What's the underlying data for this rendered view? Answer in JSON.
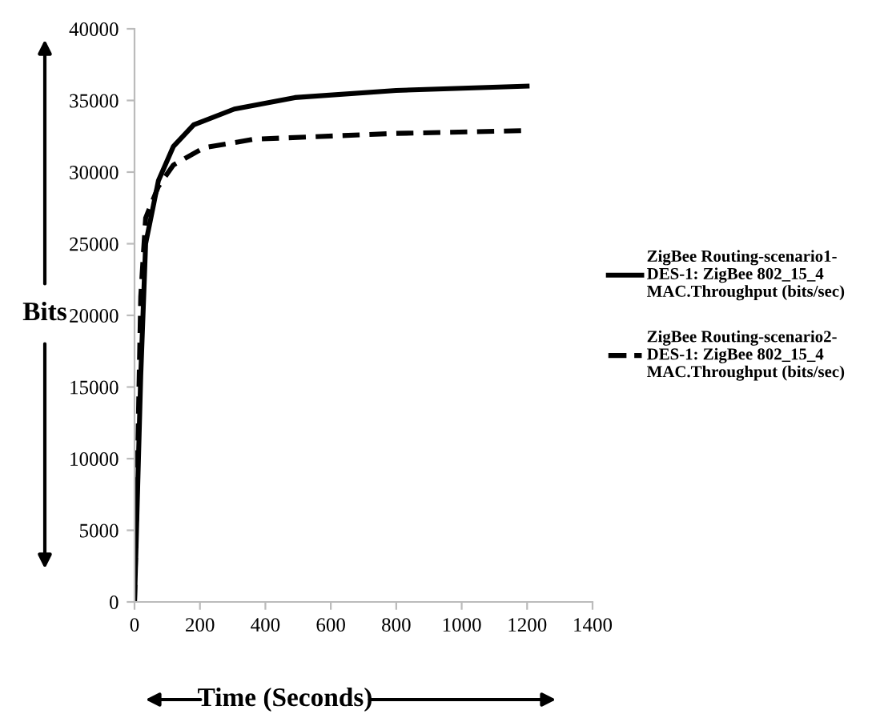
{
  "chart_data": {
    "type": "line",
    "xlabel": "Time (Seconds)",
    "ylabel": "Bits",
    "xlim": [
      0,
      1400
    ],
    "xticks": [
      0,
      200,
      400,
      600,
      800,
      1000,
      1200,
      1400
    ],
    "ylim": [
      0,
      40000
    ],
    "yticks": [
      0,
      5000,
      10000,
      15000,
      20000,
      25000,
      30000,
      35000,
      40000
    ],
    "grid": false,
    "legend": "right",
    "marker": "none",
    "series": [
      {
        "name": "ZigBee Routing-scenario1-DES-1: ZigBee 802_15_4 MAC.Throughput (bits/sec)",
        "color": "#000000",
        "line_style": "solid",
        "x": [
          0,
          19,
          34,
          73,
          119,
          181,
          305,
          490,
          800,
          1200
        ],
        "values": [
          0,
          15800,
          25000,
          29400,
          31800,
          33300,
          34400,
          35200,
          35700,
          36000
        ]
      },
      {
        "name": "ZigBee Routing-scenario2-DES-1: ZigBee 802_15_4 MAC.Throughput (bits/sec)",
        "color": "#000000",
        "line_style": "dashed",
        "x": [
          0,
          8,
          19,
          34,
          73,
          119,
          212,
          367,
          800,
          1200
        ],
        "values": [
          0,
          8300,
          21300,
          26800,
          29000,
          30500,
          31700,
          32300,
          32700,
          32900
        ]
      }
    ]
  }
}
